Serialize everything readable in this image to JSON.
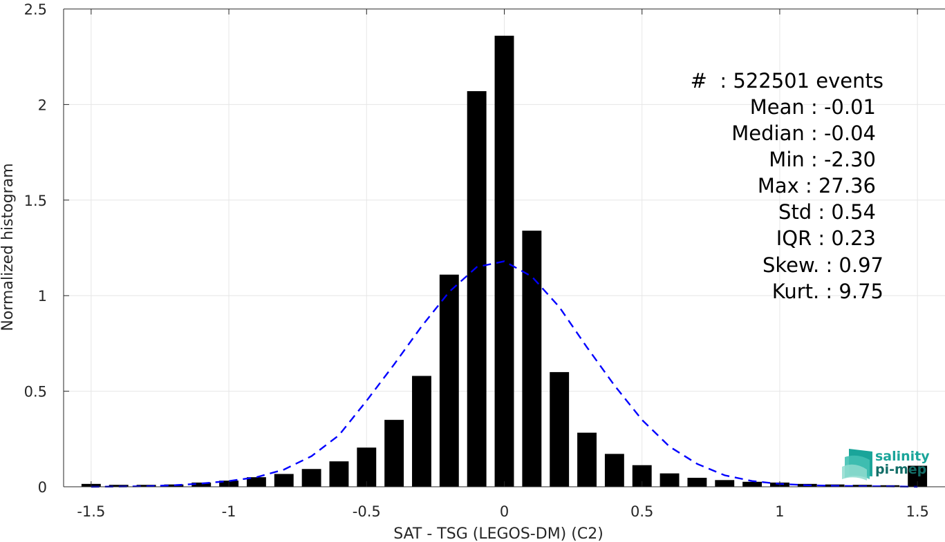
{
  "chart_data": {
    "type": "bar",
    "xlabel": "SAT - TSG (LEGOS-DM) (C2)",
    "ylabel": "Normalized histogram",
    "xlim": [
      -1.6,
      1.6
    ],
    "ylim": [
      0,
      2.5
    ],
    "xticks": [
      -1.5,
      -1,
      -0.5,
      0,
      0.5,
      1,
      1.5
    ],
    "xtick_labels": [
      "-1.5",
      "-1",
      "-0.5",
      "0",
      "0.5",
      "1",
      "1.5"
    ],
    "yticks": [
      0,
      0.5,
      1,
      1.5,
      2,
      2.5
    ],
    "ytick_labels": [
      "0",
      "0.5",
      "1",
      "1.5",
      "2",
      "2.5"
    ],
    "grid": true,
    "bar_width": 0.07,
    "series": [
      {
        "style": "bar",
        "color": "#000000",
        "x": [
          -1.5,
          -1.4,
          -1.3,
          -1.2,
          -1.1,
          -1.0,
          -0.9,
          -0.8,
          -0.7,
          -0.6,
          -0.5,
          -0.4,
          -0.3,
          -0.2,
          -0.1,
          0.0,
          0.1,
          0.2,
          0.3,
          0.4,
          0.5,
          0.6,
          0.7,
          0.8,
          0.9,
          1.0,
          1.1,
          1.2,
          1.3,
          1.4,
          1.5
        ],
        "values": [
          0.015,
          0.01,
          0.01,
          0.012,
          0.022,
          0.032,
          0.05,
          0.067,
          0.093,
          0.133,
          0.205,
          0.35,
          0.58,
          1.11,
          2.07,
          2.36,
          1.34,
          0.6,
          0.283,
          0.172,
          0.113,
          0.07,
          0.047,
          0.035,
          0.026,
          0.022,
          0.015,
          0.012,
          0.01,
          0.008,
          0.11
        ]
      },
      {
        "style": "dashed-line",
        "color": "#0000ff",
        "x": [
          -1.5,
          -1.4,
          -1.3,
          -1.2,
          -1.1,
          -1.0,
          -0.9,
          -0.8,
          -0.7,
          -0.6,
          -0.5,
          -0.4,
          -0.3,
          -0.2,
          -0.1,
          0.0,
          0.1,
          0.2,
          0.3,
          0.4,
          0.5,
          0.6,
          0.7,
          0.8,
          0.9,
          1.0,
          1.1,
          1.2,
          1.3,
          1.4,
          1.5
        ],
        "values": [
          0.0,
          0.001,
          0.003,
          0.008,
          0.017,
          0.03,
          0.05,
          0.09,
          0.16,
          0.27,
          0.45,
          0.64,
          0.84,
          1.02,
          1.15,
          1.18,
          1.1,
          0.94,
          0.73,
          0.53,
          0.35,
          0.21,
          0.12,
          0.06,
          0.03,
          0.015,
          0.008,
          0.005,
          0.003,
          0.002,
          0.0
        ]
      }
    ],
    "stats": [
      "#  : 522501 events",
      "Mean : -0.01",
      "Median : -0.04",
      "Min : -2.30",
      "Max : 27.36",
      "Std : 0.54",
      "IQR : 0.23",
      "Skew. : 0.97",
      "Kurt. : 9.75"
    ]
  },
  "logo": {
    "line1": "salinity",
    "line2": "pi-mep",
    "color1": "#1aa59a",
    "color2": "#136e68"
  },
  "colors": {
    "axis": "#262626",
    "grid": "#e6e6e6",
    "bar": "#000000",
    "fit": "#0000ff"
  }
}
